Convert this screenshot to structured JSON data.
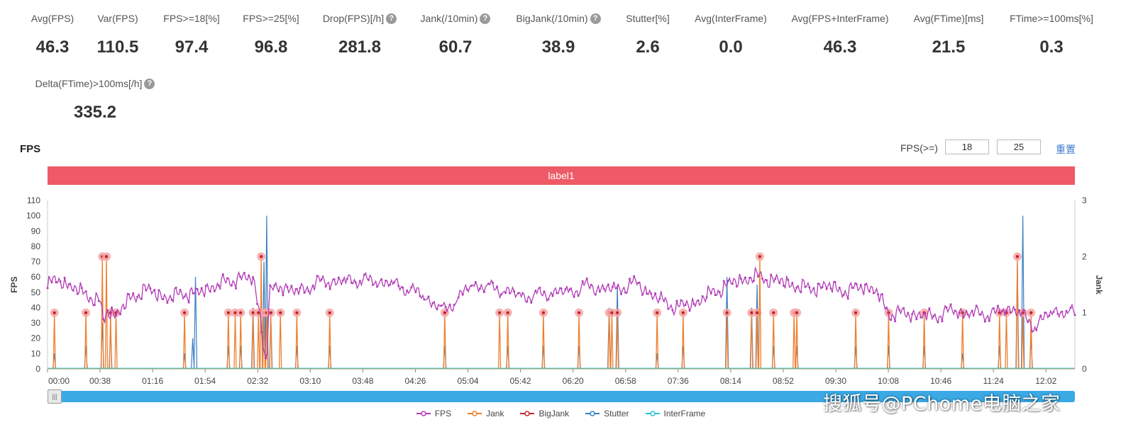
{
  "stats": [
    {
      "label": "Avg(FPS)",
      "value": "46.3",
      "help": false
    },
    {
      "label": "Var(FPS)",
      "value": "110.5",
      "help": false
    },
    {
      "label": "FPS>=18[%]",
      "value": "97.4",
      "help": false
    },
    {
      "label": "FPS>=25[%]",
      "value": "96.8",
      "help": false
    },
    {
      "label": "Drop(FPS)[/h]",
      "value": "281.8",
      "help": true
    },
    {
      "label": "Jank(/10min)",
      "value": "60.7",
      "help": true
    },
    {
      "label": "BigJank(/10min)",
      "value": "38.9",
      "help": true
    },
    {
      "label": "Stutter[%]",
      "value": "2.6",
      "help": false
    },
    {
      "label": "Avg(InterFrame)",
      "value": "0.0",
      "help": false
    },
    {
      "label": "Avg(FPS+InterFrame)",
      "value": "46.3",
      "help": false
    },
    {
      "label": "Avg(FTime)[ms]",
      "value": "21.5",
      "help": false
    },
    {
      "label": "FTime>=100ms[%]",
      "value": "0.3",
      "help": false
    },
    {
      "label": "Delta(FTime)>100ms[/h]",
      "value": "335.2",
      "help": true
    }
  ],
  "chart_header": {
    "title": "FPS",
    "threshold_label": "FPS(>=)",
    "threshold_low": "18",
    "threshold_high": "25",
    "reset_label": "重置"
  },
  "label_bar": {
    "text": "label1",
    "color": "#ee5a67"
  },
  "watermark": "搜狐号@PChome电脑之家",
  "chart_data": {
    "type": "line",
    "title": "",
    "ylabel": "FPS",
    "y2label": "Jank",
    "ylim": [
      0,
      110
    ],
    "y2lim": [
      0,
      3
    ],
    "y_ticks": [
      0,
      10,
      20,
      30,
      40,
      50,
      60,
      70,
      80,
      90,
      100,
      110
    ],
    "y2_ticks": [
      0,
      1,
      2,
      3
    ],
    "x_ticks": [
      "00:00",
      "00:38",
      "01:16",
      "01:54",
      "02:32",
      "03:10",
      "03:48",
      "04:26",
      "05:04",
      "05:42",
      "06:20",
      "06:58",
      "07:36",
      "08:14",
      "08:52",
      "09:30",
      "10:08",
      "10:46",
      "11:24",
      "12:02"
    ],
    "x_seconds_range": [
      0,
      750
    ],
    "legend_position": "bottom",
    "colors": {
      "FPS": "#b23cb8",
      "Jank": "#ef7f2e",
      "BigJank": "#c0272d",
      "Stutter": "#3a7ec2",
      "InterFrame": "#2bc3d3",
      "marker": "#f4a6a6"
    },
    "series": [
      {
        "name": "FPS",
        "axis": "left",
        "x": [
          0,
          10,
          20,
          30,
          38,
          41,
          44,
          50,
          55,
          60,
          70,
          80,
          90,
          100,
          110,
          120,
          130,
          140,
          150,
          155,
          158,
          160,
          162,
          165,
          170,
          180,
          190,
          200,
          210,
          230,
          250,
          270,
          290,
          310,
          330,
          350,
          370,
          385,
          392,
          400,
          415,
          430,
          445,
          460,
          475,
          490,
          505,
          520,
          540,
          555,
          565,
          575,
          585,
          595,
          605,
          615,
          630,
          645,
          660,
          675,
          690,
          705,
          720,
          735,
          750
        ],
        "values": [
          55,
          58,
          52,
          48,
          44,
          30,
          38,
          36,
          40,
          45,
          52,
          49,
          46,
          50,
          49,
          54,
          56,
          60,
          58,
          38,
          12,
          5,
          48,
          52,
          55,
          50,
          53,
          57,
          57,
          58,
          56,
          50,
          38,
          55,
          52,
          47,
          50,
          51,
          54,
          53,
          52,
          56,
          46,
          40,
          44,
          52,
          58,
          60,
          56,
          52,
          54,
          53,
          50,
          55,
          50,
          36,
          36,
          34,
          38,
          36,
          36,
          40,
          28,
          38,
          36
        ]
      },
      {
        "name": "Jank",
        "axis": "right",
        "events": [
          {
            "x": 5,
            "v": 1
          },
          {
            "x": 28,
            "v": 1
          },
          {
            "x": 40,
            "v": 2
          },
          {
            "x": 43,
            "v": 2
          },
          {
            "x": 46,
            "v": 1
          },
          {
            "x": 50,
            "v": 1
          },
          {
            "x": 100,
            "v": 1
          },
          {
            "x": 132,
            "v": 1
          },
          {
            "x": 137,
            "v": 1
          },
          {
            "x": 141,
            "v": 1
          },
          {
            "x": 150,
            "v": 1
          },
          {
            "x": 154,
            "v": 1
          },
          {
            "x": 156,
            "v": 2
          },
          {
            "x": 158,
            "v": 1
          },
          {
            "x": 160,
            "v": 1
          },
          {
            "x": 163,
            "v": 1
          },
          {
            "x": 170,
            "v": 1
          },
          {
            "x": 182,
            "v": 1
          },
          {
            "x": 206,
            "v": 1
          },
          {
            "x": 290,
            "v": 1
          },
          {
            "x": 330,
            "v": 1
          },
          {
            "x": 336,
            "v": 1
          },
          {
            "x": 362,
            "v": 1
          },
          {
            "x": 388,
            "v": 1
          },
          {
            "x": 410,
            "v": 1
          },
          {
            "x": 412,
            "v": 1
          },
          {
            "x": 416,
            "v": 1
          },
          {
            "x": 445,
            "v": 1
          },
          {
            "x": 464,
            "v": 1
          },
          {
            "x": 496,
            "v": 1
          },
          {
            "x": 514,
            "v": 1
          },
          {
            "x": 518,
            "v": 1
          },
          {
            "x": 520,
            "v": 2
          },
          {
            "x": 530,
            "v": 1
          },
          {
            "x": 545,
            "v": 1
          },
          {
            "x": 547,
            "v": 1
          },
          {
            "x": 590,
            "v": 1
          },
          {
            "x": 614,
            "v": 1
          },
          {
            "x": 640,
            "v": 1
          },
          {
            "x": 668,
            "v": 1
          },
          {
            "x": 695,
            "v": 1
          },
          {
            "x": 700,
            "v": 1
          },
          {
            "x": 708,
            "v": 2
          },
          {
            "x": 712,
            "v": 1
          },
          {
            "x": 718,
            "v": 1
          }
        ]
      },
      {
        "name": "BigJank",
        "axis": "right",
        "events": []
      },
      {
        "name": "Stutter",
        "axis": "left",
        "events": [
          {
            "x": 5,
            "v": 10
          },
          {
            "x": 28,
            "v": 15
          },
          {
            "x": 40,
            "v": 30
          },
          {
            "x": 46,
            "v": 25
          },
          {
            "x": 100,
            "v": 10
          },
          {
            "x": 106,
            "v": 20
          },
          {
            "x": 108,
            "v": 60
          },
          {
            "x": 132,
            "v": 15
          },
          {
            "x": 141,
            "v": 15
          },
          {
            "x": 150,
            "v": 40
          },
          {
            "x": 158,
            "v": 70
          },
          {
            "x": 160,
            "v": 100
          },
          {
            "x": 163,
            "v": 35
          },
          {
            "x": 182,
            "v": 15
          },
          {
            "x": 206,
            "v": 15
          },
          {
            "x": 290,
            "v": 15
          },
          {
            "x": 336,
            "v": 15
          },
          {
            "x": 362,
            "v": 15
          },
          {
            "x": 388,
            "v": 15
          },
          {
            "x": 410,
            "v": 40
          },
          {
            "x": 416,
            "v": 55
          },
          {
            "x": 445,
            "v": 10
          },
          {
            "x": 464,
            "v": 15
          },
          {
            "x": 496,
            "v": 60
          },
          {
            "x": 514,
            "v": 40
          },
          {
            "x": 518,
            "v": 55
          },
          {
            "x": 530,
            "v": 15
          },
          {
            "x": 547,
            "v": 15
          },
          {
            "x": 590,
            "v": 15
          },
          {
            "x": 614,
            "v": 15
          },
          {
            "x": 640,
            "v": 15
          },
          {
            "x": 668,
            "v": 10
          },
          {
            "x": 695,
            "v": 15
          },
          {
            "x": 708,
            "v": 70
          },
          {
            "x": 712,
            "v": 100
          },
          {
            "x": 718,
            "v": 20
          }
        ]
      },
      {
        "name": "InterFrame",
        "axis": "left",
        "events": []
      }
    ]
  }
}
